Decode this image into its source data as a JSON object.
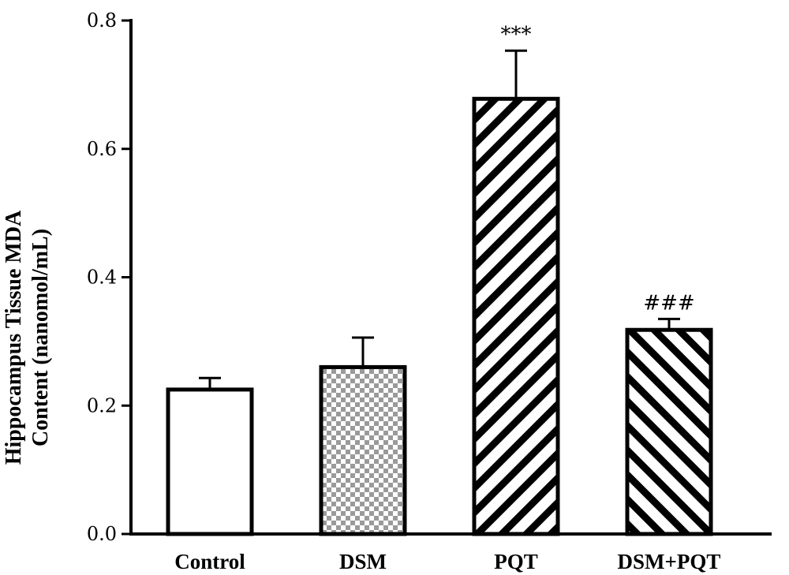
{
  "chart_data": {
    "type": "bar",
    "categories": [
      "Control",
      "DSM",
      "PQT",
      "DSM+PQT"
    ],
    "values": [
      0.225,
      0.26,
      0.678,
      0.318
    ],
    "error": [
      0.018,
      0.046,
      0.075,
      0.017
    ],
    "patterns": [
      "none",
      "checker",
      "diag-back",
      "diag-fwd"
    ],
    "annotations": [
      "",
      "",
      "***",
      "###"
    ],
    "ylabel_line1": "Hippocampus Tissue MDA",
    "ylabel_line2": "Content (nanomol/mL)",
    "ylim": [
      0,
      0.8
    ],
    "yticks": [
      "0.0",
      "0.2",
      "0.4",
      "0.6",
      "0.8"
    ],
    "grid": false
  }
}
